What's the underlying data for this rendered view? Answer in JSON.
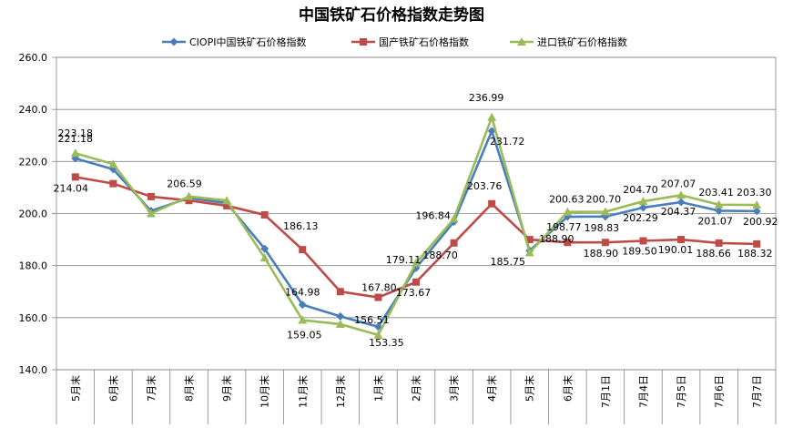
{
  "chart_data": {
    "type": "line",
    "title": "中国铁矿石价格指数走势图",
    "categories": [
      "5月末",
      "6月末",
      "7月末",
      "8月末",
      "9月末",
      "10月末",
      "11月末",
      "12月末",
      "1月末",
      "2月末",
      "3月末",
      "4月末",
      "5月末",
      "6月末",
      "7月1日",
      "7月4日",
      "7月5日",
      "7月6日",
      "7月7日"
    ],
    "ylim": [
      140,
      260
    ],
    "yticks": [
      "140.0",
      "160.0",
      "180.0",
      "200.0",
      "220.0",
      "240.0",
      "260.0"
    ],
    "grid": "horizontal",
    "legend_position": "top",
    "series": [
      {
        "name": "CIOPI中国铁矿石价格指数",
        "color": "#4a7ebb",
        "marker": "diamond",
        "values": [
          221.18,
          217.0,
          201.0,
          206.0,
          204.0,
          186.5,
          164.98,
          160.5,
          156.51,
          179.11,
          196.84,
          231.72,
          185.75,
          198.77,
          198.83,
          202.29,
          204.37,
          201.07,
          200.92
        ],
        "labels": [
          "221.18",
          null,
          null,
          null,
          null,
          null,
          "164.98",
          null,
          "156.51",
          "179.11",
          "196.84",
          "231.72",
          "185.75",
          "198.77",
          "198.83",
          "202.29",
          "204.37",
          "201.07",
          "200.92"
        ]
      },
      {
        "name": "国产铁矿石价格指数",
        "color": "#be4b48",
        "marker": "square",
        "values": [
          214.04,
          211.5,
          206.5,
          205.0,
          203.0,
          199.5,
          186.13,
          170.0,
          167.8,
          173.67,
          188.7,
          203.76,
          190.0,
          188.9,
          188.9,
          189.5,
          190.01,
          188.66,
          188.32
        ],
        "labels": [
          "214.04",
          null,
          null,
          null,
          null,
          null,
          "186.13",
          null,
          "167.80",
          "173.67",
          "188.70",
          "203.76",
          null,
          "188.90",
          "188.90",
          "189.50",
          "190.01",
          "188.66",
          "188.32"
        ]
      },
      {
        "name": "进口铁矿石价格指数",
        "color": "#9bbb59",
        "marker": "triangle",
        "values": [
          223.18,
          219.0,
          200.0,
          206.59,
          205.0,
          183.0,
          159.05,
          157.5,
          153.35,
          181.0,
          198.0,
          236.99,
          185.0,
          200.63,
          200.7,
          204.7,
          207.07,
          203.41,
          203.3
        ],
        "labels": [
          "223.18",
          null,
          null,
          "206.59",
          null,
          null,
          "159.05",
          null,
          "153.35",
          null,
          null,
          "236.99",
          null,
          "200.63",
          "200.70",
          "204.70",
          "207.07",
          "203.41",
          "203.30"
        ]
      }
    ]
  }
}
